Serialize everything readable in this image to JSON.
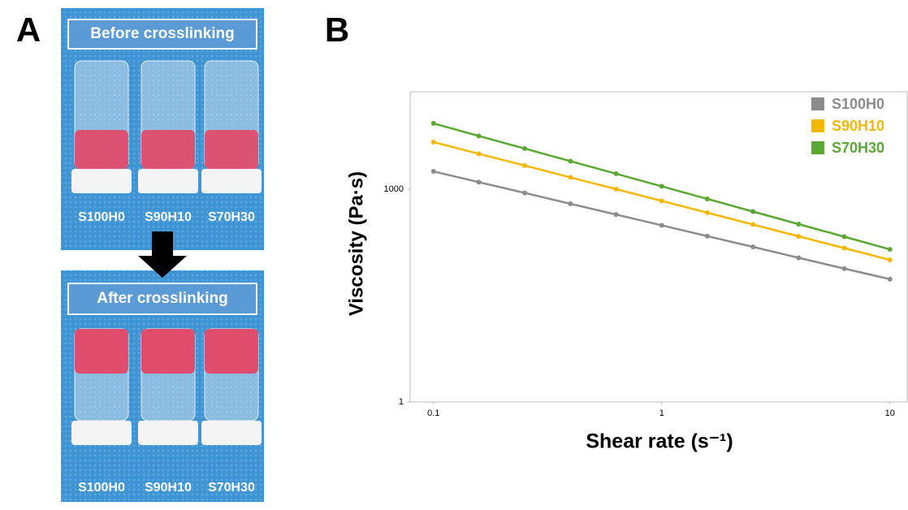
{
  "panel_a": {
    "label": "A",
    "before": {
      "title": "Before crosslinking",
      "samples": [
        "S100H0",
        "S90H10",
        "S70H30"
      ]
    },
    "after": {
      "title": "After crosslinking",
      "samples": [
        "S100H0",
        "S90H10",
        "S70H30"
      ]
    }
  },
  "chart_data": {
    "type": "line",
    "panel_label": "B",
    "x_label": "Shear rate (s⁻¹)",
    "y_label": "Viscosity (Pa·s)",
    "xscale": "log",
    "yscale": "log",
    "x": [
      0.1,
      0.158,
      0.251,
      0.398,
      0.631,
      1,
      1.585,
      2.512,
      3.981,
      6.31,
      10
    ],
    "xlim": [
      0.079,
      11.9
    ],
    "ylim": [
      1,
      23700
    ],
    "xticks": [
      0.1,
      1,
      10
    ],
    "yticks": [
      1,
      1000
    ],
    "grid": false,
    "legend": "top-right",
    "series": [
      {
        "name": "S100H0",
        "color": "#8c8c8c",
        "values": [
          1786,
          1259,
          887,
          624,
          440,
          310,
          218,
          154,
          108,
          76,
          54
        ]
      },
      {
        "name": "S90H10",
        "color": "#f5b800",
        "values": [
          4630,
          3160,
          2160,
          1470,
          1005,
          685,
          467,
          318,
          217,
          148,
          101
        ]
      },
      {
        "name": "S70H30",
        "color": "#5aa832",
        "values": [
          8490,
          5640,
          3750,
          2490,
          1655,
          1100,
          730,
          485,
          322,
          214,
          142
        ]
      }
    ]
  }
}
